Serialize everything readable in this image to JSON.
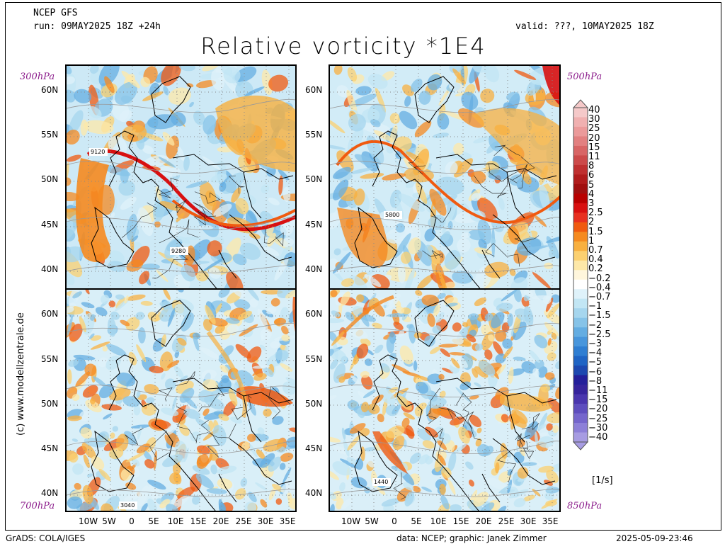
{
  "header": {
    "model": "NCEP GFS",
    "run": "run: 09MAY2025 18Z +24h",
    "valid": "valid: ???, 10MAY2025 18Z",
    "title": "Relative vorticity *1E4"
  },
  "levels": {
    "tl": "300hPa",
    "tr": "500hPa",
    "bl": "700hPa",
    "br": "850hPa"
  },
  "lat_ticks": [
    "60N",
    "55N",
    "50N",
    "45N",
    "40N"
  ],
  "lon_ticks": [
    "10W",
    "5W",
    "0",
    "5E",
    "10E",
    "15E",
    "20E",
    "25E",
    "30E",
    "35E"
  ],
  "contour_labels": {
    "tl_a": "9120",
    "tl_b": "9280",
    "tr": "5800",
    "bl": "3040",
    "br": "1440"
  },
  "colorbar": {
    "labels": [
      "40",
      "30",
      "25",
      "20",
      "15",
      "11",
      "8",
      "6",
      "5",
      "4",
      "3",
      "2.5",
      "2",
      "1.5",
      "1",
      "0.7",
      "0.4",
      "0.2",
      "−0.2",
      "−0.4",
      "−0.7",
      "−1",
      "−1.5",
      "−2",
      "−2.5",
      "−3",
      "−4",
      "−5",
      "−6",
      "−8",
      "−11",
      "−15",
      "−20",
      "−25",
      "−30",
      "−40"
    ],
    "units": "[1/s]",
    "colors": [
      "#f5c9c9",
      "#f0b0b0",
      "#eb9a9a",
      "#e28080",
      "#d86565",
      "#cc4a4a",
      "#bf3030",
      "#b01c1c",
      "#a00f0f",
      "#b80000",
      "#d81010",
      "#e83020",
      "#f05a10",
      "#f58a20",
      "#f8b040",
      "#fbd070",
      "#fde8a8",
      "#fff6dc",
      "#ffffff",
      "#dff2fa",
      "#c2e6f4",
      "#a6d6ee",
      "#86c3e8",
      "#64ade2",
      "#4896dc",
      "#2f7ed2",
      "#1f64c4",
      "#1d48b0",
      "#241f9a",
      "#36249c",
      "#4a36ae",
      "#5e4ebe",
      "#7566cc",
      "#8d80d8",
      "#a79ce2"
    ]
  },
  "footer": {
    "left": "GrADS: COLA/IGES",
    "mid": "data: NCEP; graphic: Janek Zimmer",
    "date": "2025-05-09-23:46"
  },
  "side_credit": "(c) www.modellzentrale.de"
}
